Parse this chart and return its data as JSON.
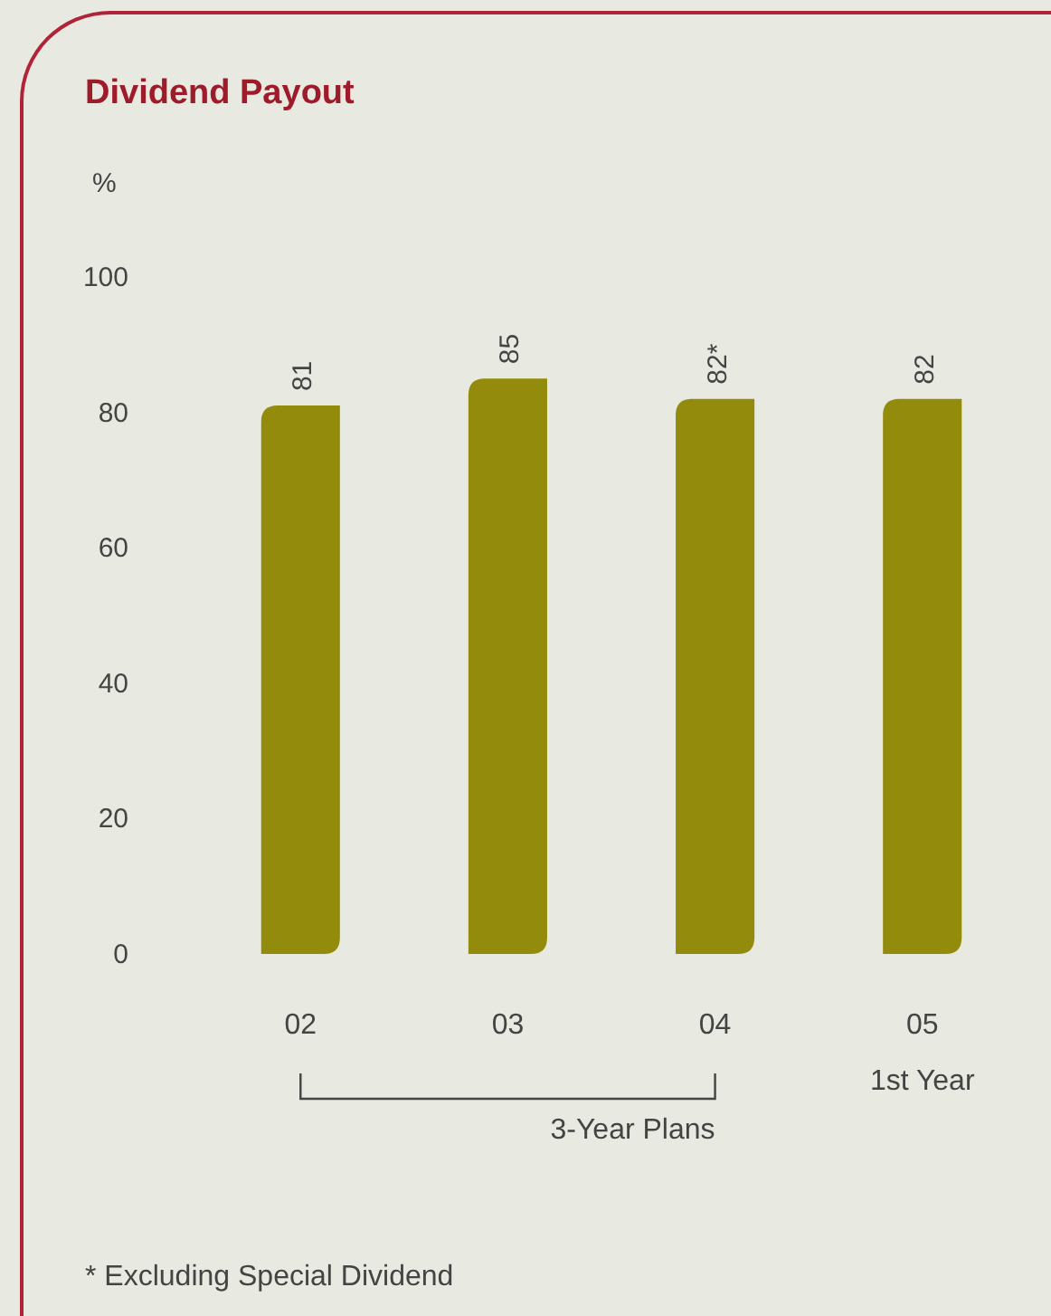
{
  "chart_data": {
    "type": "bar",
    "title": "Dividend Payout",
    "ylabel": "%",
    "categories": [
      "02",
      "03",
      "04",
      "05"
    ],
    "values": [
      81,
      85,
      82,
      82
    ],
    "value_labels": [
      "81",
      "85",
      "82*",
      "82"
    ],
    "color": "#938b0c",
    "ylim": [
      0,
      100
    ],
    "yticks": [
      0,
      20,
      40,
      60,
      80,
      100
    ],
    "annotations": [
      "3-Year Plans",
      "1st Year",
      "* Excluding Special Dividend"
    ]
  }
}
